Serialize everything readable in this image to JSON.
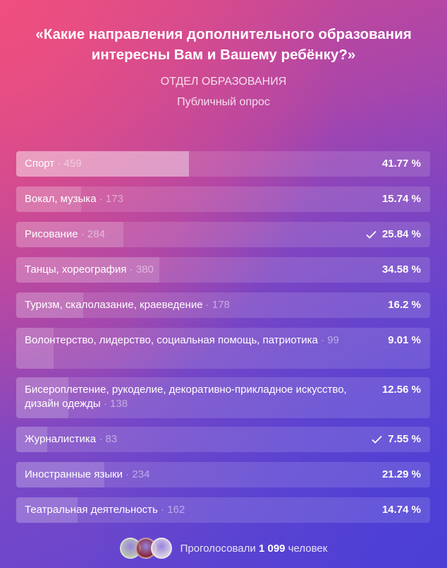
{
  "poll": {
    "question": "«Какие направления дополнительного образования интересны Вам и Вашему ребёнку?»",
    "author": "ОТДЕЛ ОБРАЗОВАНИЯ",
    "type": "Публичный опрос"
  },
  "options": [
    {
      "label": "Спорт",
      "count": "· 459",
      "percent": "41.77 %",
      "share": 0.4177,
      "checked": false,
      "top": true
    },
    {
      "label": "Вокал, музыка",
      "count": "· 173",
      "percent": "15.74 %",
      "share": 0.1574,
      "checked": false,
      "top": false
    },
    {
      "label": "Рисование",
      "count": "· 284",
      "percent": "25.84 %",
      "share": 0.2584,
      "checked": true,
      "top": false
    },
    {
      "label": "Танцы, хореография",
      "count": "· 380",
      "percent": "34.58 %",
      "share": 0.3458,
      "checked": false,
      "top": false
    },
    {
      "label": "Туризм, скалолазание, краеведение",
      "count": "· 178",
      "percent": "16.2 %",
      "share": 0.162,
      "checked": false,
      "top": false
    },
    {
      "label": "Волонтерство, лидерство, социальная помощь, патриотика",
      "count": "· 99",
      "percent": "9.01 %",
      "share": 0.0901,
      "checked": false,
      "top": false
    },
    {
      "label": "Бисероплетение, рукоделие, декоративно-прикладное искусство, дизайн одежды",
      "count": "· 138",
      "percent": "12.56 %",
      "share": 0.1256,
      "checked": false,
      "top": false
    },
    {
      "label": "Журналистика",
      "count": "· 83",
      "percent": "7.55 %",
      "share": 0.0755,
      "checked": true,
      "top": false
    },
    {
      "label": "Иностранные языки",
      "count": "· 234",
      "percent": "21.29 %",
      "share": 0.2129,
      "checked": false,
      "top": false
    },
    {
      "label": "Театральная деятельность",
      "count": "· 162",
      "percent": "14.74 %",
      "share": 0.1474,
      "checked": false,
      "top": false
    }
  ],
  "footer": {
    "voted_prefix": "Проголосовали",
    "voted_count": "1 099",
    "voted_suffix": "человек",
    "avatar_colors": [
      "#b9c3b0",
      "#8a2a3a",
      "#d8cfe0"
    ]
  },
  "icons": {
    "check": "check-icon"
  }
}
